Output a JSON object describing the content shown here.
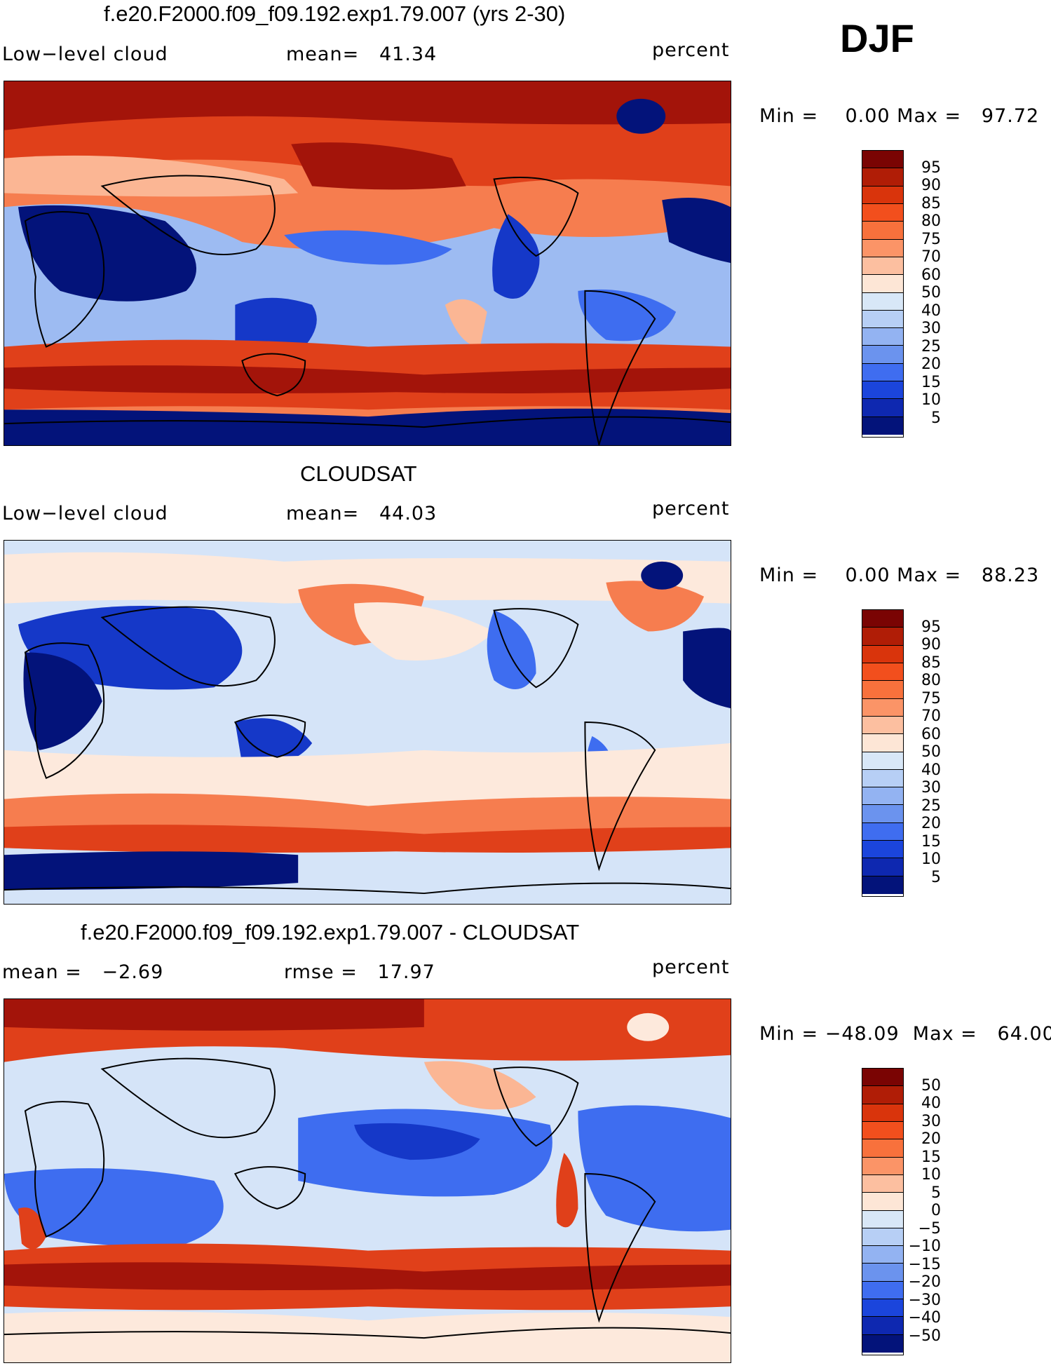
{
  "season": "DJF",
  "panels": [
    {
      "title": "f.e20.F2000.f09_f09.192.exp1.79.007 (yrs 2-30)",
      "left_label": "Low−level cloud",
      "center_label": "mean=   41.34",
      "right_label": "percent",
      "stats": "Min =    0.00 Max =   97.72",
      "colorbar": {
        "labels": [
          "95",
          "90",
          "85",
          "80",
          "75",
          "70",
          "60",
          "50",
          "40",
          "30",
          "25",
          "20",
          "15",
          "10",
          "5"
        ],
        "colors": [
          "#7a0403",
          "#b01d06",
          "#d9340c",
          "#f24f1d",
          "#f8713c",
          "#fb9467",
          "#fcbfa0",
          "#fde6d6",
          "#d8e7f7",
          "#b7cff5",
          "#93b3f2",
          "#6b93ee",
          "#3f6df0",
          "#1b45dc",
          "#0e28b0",
          "#03137a"
        ]
      }
    },
    {
      "title": "CLOUDSAT",
      "left_label": "Low−level cloud",
      "center_label": "mean=   44.03",
      "right_label": "percent",
      "stats": "Min =    0.00 Max =   88.23",
      "colorbar": {
        "labels": [
          "95",
          "90",
          "85",
          "80",
          "75",
          "70",
          "60",
          "50",
          "40",
          "30",
          "25",
          "20",
          "15",
          "10",
          "5"
        ],
        "colors": [
          "#7a0403",
          "#b01d06",
          "#d9340c",
          "#f24f1d",
          "#f8713c",
          "#fb9467",
          "#fcbfa0",
          "#fde6d6",
          "#d8e7f7",
          "#b7cff5",
          "#93b3f2",
          "#6b93ee",
          "#3f6df0",
          "#1b45dc",
          "#0e28b0",
          "#03137a"
        ]
      }
    },
    {
      "title": "f.e20.F2000.f09_f09.192.exp1.79.007 - CLOUDSAT",
      "left_label": "mean =   −2.69",
      "center_label": "rmse =   17.97",
      "right_label": "percent",
      "stats": "Min = −48.09  Max =   64.00",
      "colorbar": {
        "labels": [
          "50",
          "40",
          "30",
          "20",
          "15",
          "10",
          "5",
          "0",
          "−5",
          "−10",
          "−15",
          "−20",
          "−30",
          "−40",
          "−50"
        ],
        "colors": [
          "#7a0403",
          "#b01d06",
          "#d9340c",
          "#f24f1d",
          "#f8713c",
          "#fb9467",
          "#fcbfa0",
          "#fde6d6",
          "#d8e7f7",
          "#b7cff5",
          "#93b3f2",
          "#6b93ee",
          "#3f6df0",
          "#1b45dc",
          "#0e28b0",
          "#03137a"
        ]
      }
    }
  ],
  "map_colors": {
    "deep_red": "#a3140a",
    "red": "#e0401a",
    "orange": "#f67d4f",
    "light_orange": "#fbb694",
    "cream": "#fde9dc",
    "pale_blue": "#d5e4f8",
    "light_blue": "#9dbbf2",
    "blue": "#3e6df0",
    "deep_blue": "#1538c8",
    "navy": "#03137a",
    "coast": "#000000"
  }
}
